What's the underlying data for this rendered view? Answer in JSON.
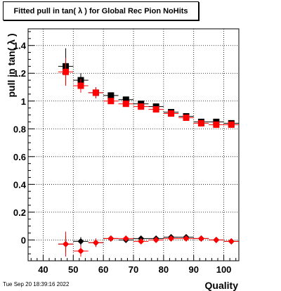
{
  "title": "Fitted pull in tan( λ ) for Global Rec Pion NoHits",
  "timestamp": "Tue Sep 20 18:39:16 2022",
  "chart_data": {
    "type": "scatter",
    "title": "Fitted pull in tan( λ ) for Global Rec Pion NoHits",
    "xlabel": "Quality",
    "ylabel": "pull in tan( λ )",
    "xlim": [
      35,
      105
    ],
    "ylim": [
      -0.15,
      1.52
    ],
    "xticks": [
      40,
      50,
      60,
      70,
      80,
      90,
      100
    ],
    "yticks": [
      0,
      0.2,
      0.4,
      0.6,
      0.8,
      1,
      1.2,
      1.4
    ],
    "ytick_labels": [
      "0",
      "0.2",
      "0.4",
      "0.6",
      "0.8",
      "1",
      "1.2",
      "1.4"
    ],
    "grid": true,
    "series": [
      {
        "marker": "square",
        "color": "#000000",
        "x": [
          47.5,
          52.5,
          57.5,
          62.5,
          67.5,
          72.5,
          77.5,
          82.5,
          87.5,
          92.5,
          97.5,
          102.5
        ],
        "y": [
          1.25,
          1.15,
          1.06,
          1.04,
          1.01,
          0.98,
          0.96,
          0.92,
          0.89,
          0.85,
          0.85,
          0.84
        ],
        "yerr": [
          0.13,
          0.05,
          0.04,
          0.02,
          0.02,
          0.015,
          0.015,
          0.015,
          0.015,
          0.015,
          0.015,
          0.01
        ]
      },
      {
        "marker": "square",
        "color": "#ff0000",
        "x": [
          47.5,
          52.5,
          57.5,
          62.5,
          67.5,
          72.5,
          77.5,
          82.5,
          87.5,
          92.5,
          97.5,
          102.5
        ],
        "y": [
          1.21,
          1.11,
          1.06,
          1.0,
          0.98,
          0.96,
          0.94,
          0.91,
          0.88,
          0.84,
          0.83,
          0.83
        ],
        "yerr": [
          0.1,
          0.05,
          0.04,
          0.02,
          0.02,
          0.015,
          0.015,
          0.015,
          0.015,
          0.015,
          0.015,
          0.01
        ]
      },
      {
        "marker": "diamond",
        "color": "#000000",
        "x": [
          47.5,
          52.5,
          57.5,
          62.5,
          67.5,
          72.5,
          77.5,
          82.5,
          87.5,
          92.5,
          97.5,
          102.5
        ],
        "y": [
          -0.03,
          -0.01,
          -0.02,
          0.01,
          0.0,
          0.01,
          0.01,
          0.02,
          0.02,
          0.01,
          0.0,
          -0.01
        ],
        "yerr": [
          0.06,
          0.03,
          0.03,
          0.015,
          0.015,
          0.01,
          0.01,
          0.01,
          0.01,
          0.01,
          0.01,
          0.01
        ]
      },
      {
        "marker": "diamond",
        "color": "#ff0000",
        "x": [
          47.5,
          52.5,
          57.5,
          62.5,
          67.5,
          72.5,
          77.5,
          82.5,
          87.5,
          92.5,
          97.5,
          102.5
        ],
        "y": [
          -0.03,
          -0.08,
          -0.02,
          0.01,
          0.01,
          -0.01,
          0.0,
          0.01,
          0.01,
          0.01,
          0.0,
          -0.01
        ],
        "yerr": [
          0.09,
          0.04,
          0.03,
          0.015,
          0.015,
          0.01,
          0.01,
          0.01,
          0.01,
          0.01,
          0.01,
          0.01
        ]
      }
    ]
  }
}
